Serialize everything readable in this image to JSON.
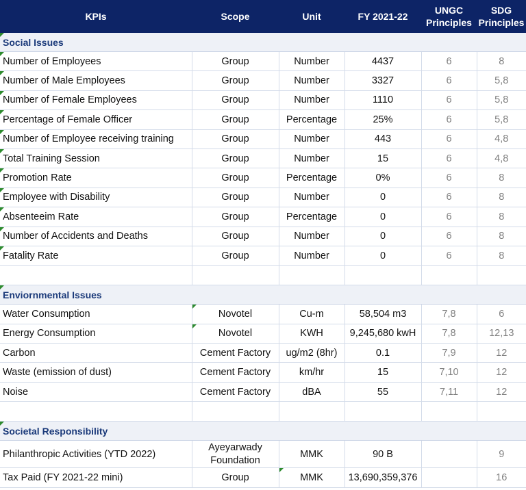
{
  "header": {
    "kpis": "KPIs",
    "scope": "Scope",
    "unit": "Unit",
    "fy": "FY 2021-22",
    "ungc_line1": "UNGC",
    "ungc_line2": "Principles",
    "sdg_line1": "SDG",
    "sdg_line2": "Principles"
  },
  "sections": {
    "social": "Social Issues",
    "environmental": "Enviornmental Issues",
    "societal": "Societal Responsibility"
  },
  "social_rows": [
    {
      "kpi": "Number of Employees",
      "scope": "Group",
      "unit": "Number",
      "value": "4437",
      "ungc": "6",
      "sdg": "8"
    },
    {
      "kpi": "Number of Male Employees",
      "scope": "Group",
      "unit": "Number",
      "value": "3327",
      "ungc": "6",
      "sdg": "5,8"
    },
    {
      "kpi": "Number of Female Employees",
      "scope": "Group",
      "unit": "Number",
      "value": "1110",
      "ungc": "6",
      "sdg": "5,8"
    },
    {
      "kpi": "Percentage of Female Officer",
      "scope": "Group",
      "unit": "Percentage",
      "value": "25%",
      "ungc": "6",
      "sdg": "5,8"
    },
    {
      "kpi": "Number of Employee receiving training",
      "scope": "Group",
      "unit": "Number",
      "value": "443",
      "ungc": "6",
      "sdg": "4,8"
    },
    {
      "kpi": "Total Training Session",
      "scope": "Group",
      "unit": "Number",
      "value": "15",
      "ungc": "6",
      "sdg": "4,8"
    },
    {
      "kpi": "Promotion Rate",
      "scope": "Group",
      "unit": "Percentage",
      "value": "0%",
      "ungc": "6",
      "sdg": "8"
    },
    {
      "kpi": "Employee with Disability",
      "scope": "Group",
      "unit": "Number",
      "value": "0",
      "ungc": "6",
      "sdg": "8"
    },
    {
      "kpi": "Absenteeim Rate",
      "scope": "Group",
      "unit": "Percentage",
      "value": "0",
      "ungc": "6",
      "sdg": "8"
    },
    {
      "kpi": "Number of Accidents and Deaths",
      "scope": "Group",
      "unit": "Number",
      "value": "0",
      "ungc": "6",
      "sdg": "8"
    },
    {
      "kpi": "Fatality Rate",
      "scope": "Group",
      "unit": "Number",
      "value": "0",
      "ungc": "6",
      "sdg": "8"
    }
  ],
  "env_rows": [
    {
      "kpi": "Water Consumption",
      "scope": "Novotel",
      "unit": "Cu-m",
      "value": "58,504 m3",
      "ungc": "7,8",
      "sdg": "6"
    },
    {
      "kpi": "Energy Consumption",
      "scope": "Novotel",
      "unit": "KWH",
      "value": "9,245,680 kwH",
      "ungc": "7,8",
      "sdg": "12,13"
    },
    {
      "kpi": "Carbon",
      "scope": "Cement Factory",
      "unit": "ug/m2 (8hr)",
      "value": "0.1",
      "ungc": "7,9",
      "sdg": "12"
    },
    {
      "kpi": "Waste (emission of dust)",
      "scope": "Cement Factory",
      "unit": "km/hr",
      "value": "15",
      "ungc": "7,10",
      "sdg": "12"
    },
    {
      "kpi": "Noise",
      "scope": "Cement Factory",
      "unit": "dBA",
      "value": "55",
      "ungc": "7,11",
      "sdg": "12"
    }
  ],
  "societal_rows": [
    {
      "kpi": "Philanthropic Activities (YTD 2022)",
      "scope": "Ayeyarwady Foundation",
      "unit": "MMK",
      "value": "90 B",
      "ungc": "",
      "sdg": "9"
    },
    {
      "kpi": "Tax Paid  (FY 2021-22 mini)",
      "scope": "Group",
      "unit": "MMK",
      "value": "13,690,359,376",
      "ungc": "",
      "sdg": "16"
    }
  ],
  "colors": {
    "header_bg": "#0d2466",
    "section_text": "#1b3a7a",
    "section_bg": "#eef1f7",
    "marker": "#2e8b2e"
  }
}
